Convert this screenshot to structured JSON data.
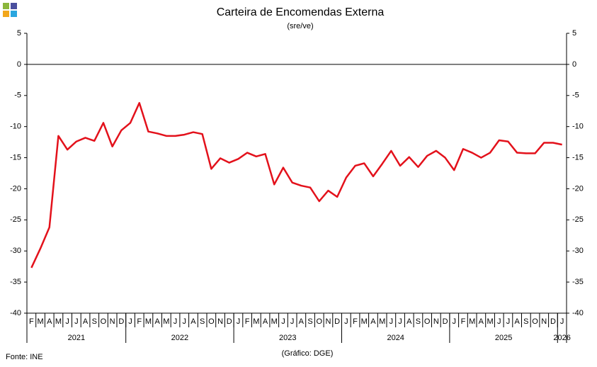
{
  "chart_data": {
    "type": "line",
    "title": "Carteira de Encomendas Externa",
    "subtitle": "(sre/ve)",
    "source": "Fonte: INE",
    "credit": "(Gráfico: DGE)",
    "categories": [
      "F",
      "M",
      "A",
      "M",
      "J",
      "J",
      "A",
      "S",
      "O",
      "N",
      "D",
      "J",
      "F",
      "M",
      "A",
      "M",
      "J",
      "J",
      "A",
      "S",
      "O",
      "N",
      "D",
      "J",
      "F",
      "M",
      "A",
      "M",
      "J",
      "J",
      "A",
      "S",
      "O",
      "N",
      "D",
      "J",
      "F",
      "M",
      "A",
      "M",
      "J",
      "J",
      "A",
      "S",
      "O",
      "N",
      "D",
      "J",
      "F",
      "M",
      "A",
      "M",
      "J",
      "J",
      "A",
      "S",
      "O",
      "N",
      "D",
      "J"
    ],
    "year_groups": [
      {
        "label": "2021",
        "span": 11
      },
      {
        "label": "2022",
        "span": 12
      },
      {
        "label": "2023",
        "span": 12
      },
      {
        "label": "2024",
        "span": 12
      },
      {
        "label": "2025",
        "span": 12
      },
      {
        "label": "2026",
        "span": 1
      }
    ],
    "series": [
      {
        "name": "Carteira de Encomendas Externa",
        "color": "#e3111b",
        "values": [
          -32.7,
          -29.6,
          -26.2,
          -11.5,
          -13.7,
          -12.4,
          -11.8,
          -12.3,
          -9.4,
          -13.2,
          -10.6,
          -9.4,
          -6.2,
          -10.8,
          -11.1,
          -11.5,
          -11.5,
          -11.3,
          -10.9,
          -11.2,
          -16.8,
          -15.1,
          -15.8,
          -15.2,
          -14.2,
          -14.8,
          -14.4,
          -19.3,
          -16.6,
          -19.0,
          -19.5,
          -19.8,
          -22.0,
          -20.3,
          -21.3,
          -18.2,
          -16.3,
          -15.9,
          -18.0,
          -16.0,
          -13.9,
          -16.3,
          -14.9,
          -16.5,
          -14.7,
          -13.9,
          -15.0,
          -17.0,
          -13.6,
          -14.2,
          -15.0,
          -14.2,
          -12.2,
          -12.4,
          -14.2,
          -14.3,
          -14.3,
          -12.6,
          -12.6,
          -12.9
        ]
      }
    ],
    "ylim": [
      -40,
      5
    ],
    "yticks": [
      -40,
      -35,
      -30,
      -25,
      -20,
      -15,
      -10,
      -5,
      0,
      5
    ]
  }
}
